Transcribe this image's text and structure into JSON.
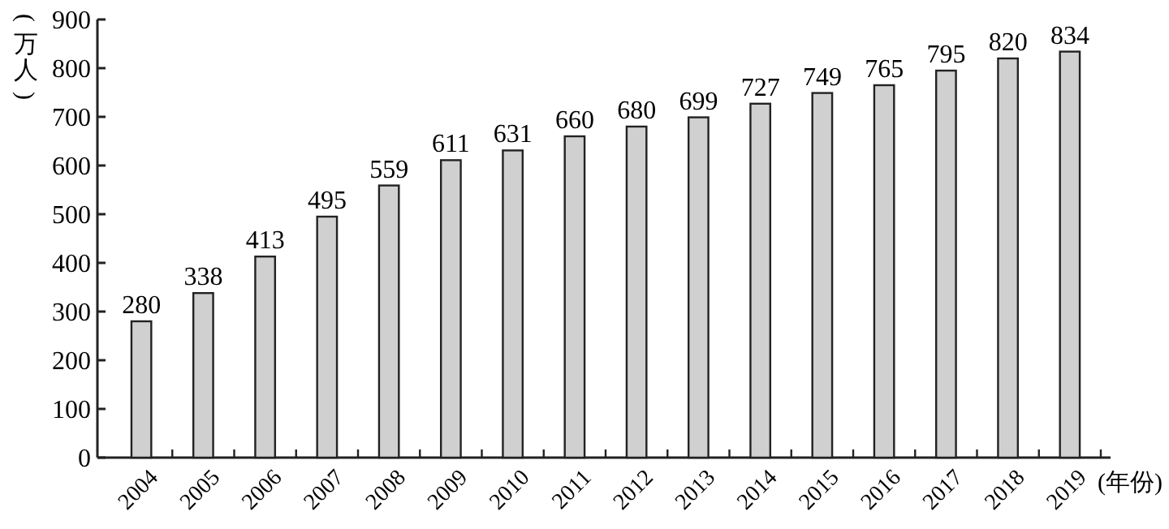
{
  "chart_data": {
    "type": "bar",
    "ylabel": "(万人)",
    "xlabel": "(年份)",
    "categories": [
      "2004",
      "2005",
      "2006",
      "2007",
      "2008",
      "2009",
      "2010",
      "2011",
      "2012",
      "2013",
      "2014",
      "2015",
      "2016",
      "2017",
      "2018",
      "2019"
    ],
    "values": [
      280,
      338,
      413,
      495,
      559,
      611,
      631,
      660,
      680,
      699,
      727,
      749,
      765,
      795,
      820,
      834
    ],
    "color": "#d0d0d0",
    "ylim": [
      0,
      900
    ],
    "yticks": [
      0,
      100,
      200,
      300,
      400,
      500,
      600,
      700,
      800,
      900
    ],
    "data_labels": true
  }
}
